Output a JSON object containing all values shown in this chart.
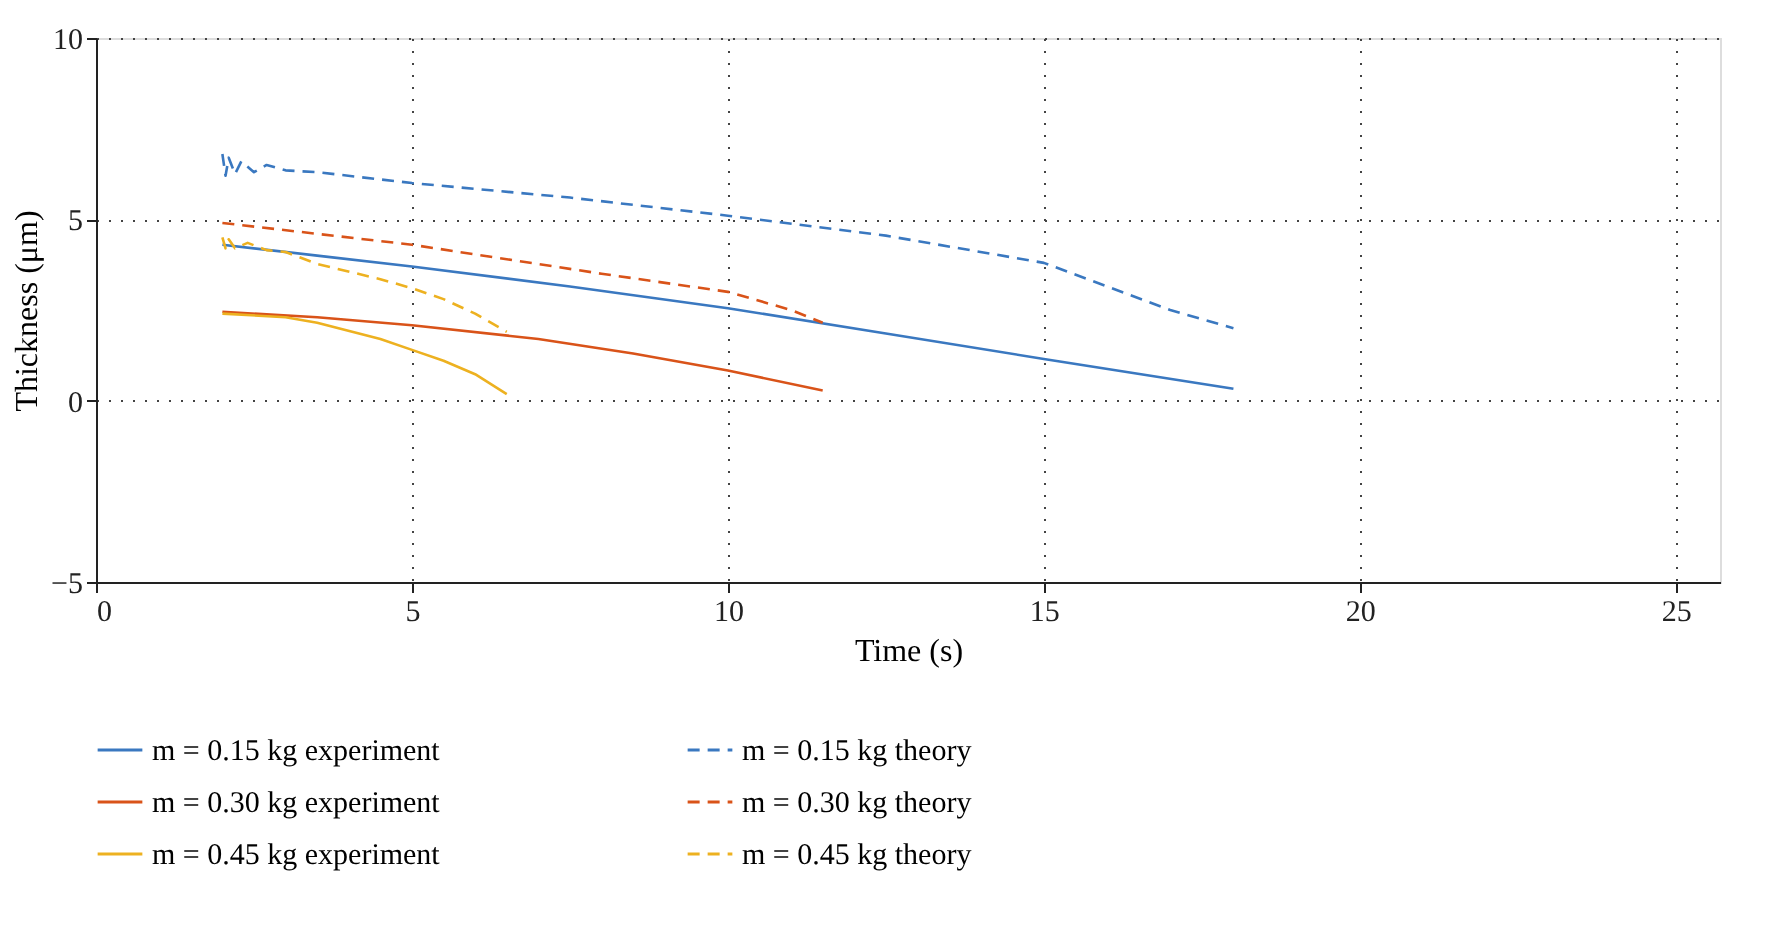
{
  "chart_data": {
    "type": "line",
    "xlabel": "Time (s)",
    "ylabel": "Thickness (μm)",
    "xlim": [
      0,
      25.7
    ],
    "ylim": [
      -5,
      10
    ],
    "xticks": [
      0,
      5,
      10,
      15,
      20,
      25
    ],
    "yticks": [
      -5,
      0,
      5,
      10
    ],
    "grid": true,
    "legend": "bottom",
    "series": [
      {
        "name": "m = 0.15 kg experiment",
        "color": "#3a78c0",
        "line_style": "solid",
        "x": [
          2,
          3.5,
          5,
          7.5,
          10,
          12.5,
          15,
          18
        ],
        "values": [
          4.3,
          4.0,
          3.7,
          3.15,
          2.55,
          1.85,
          1.15,
          0.33
        ]
      },
      {
        "name": "m = 0.30 kg experiment",
        "color": "#d95319",
        "line_style": "solid",
        "x": [
          2,
          3.5,
          5,
          7,
          8.5,
          10,
          11.5
        ],
        "values": [
          2.45,
          2.3,
          2.08,
          1.7,
          1.3,
          0.83,
          0.28
        ]
      },
      {
        "name": "m = 0.45 kg experiment",
        "color": "#edb120",
        "line_style": "solid",
        "x": [
          2,
          3,
          3.5,
          4.5,
          5,
          5.5,
          6,
          6.5
        ],
        "values": [
          2.4,
          2.3,
          2.15,
          1.7,
          1.4,
          1.1,
          0.73,
          0.18
        ]
      },
      {
        "name": "m = 0.15 kg theory",
        "color": "#3a78c0",
        "line_style": "dashed",
        "x": [
          2,
          2.05,
          2.1,
          2.2,
          2.3,
          2.5,
          2.7,
          3,
          3.5,
          5,
          7.5,
          10,
          12.5,
          15,
          17,
          18
        ],
        "values": [
          6.8,
          6.2,
          6.7,
          6.25,
          6.6,
          6.3,
          6.5,
          6.35,
          6.3,
          6.0,
          5.6,
          5.1,
          4.55,
          3.8,
          2.5,
          2.0
        ]
      },
      {
        "name": "m = 0.30 kg theory",
        "color": "#d95319",
        "line_style": "dashed",
        "x": [
          2,
          3.5,
          5,
          6.5,
          8,
          10,
          11,
          11.5
        ],
        "values": [
          4.9,
          4.6,
          4.3,
          3.9,
          3.5,
          3.0,
          2.5,
          2.15
        ]
      },
      {
        "name": "m = 0.45 kg theory",
        "color": "#edb120",
        "line_style": "dashed",
        "x": [
          2,
          2.05,
          2.1,
          2.2,
          2.4,
          2.7,
          3,
          3.5,
          4.5,
          5,
          5.5,
          6,
          6.5
        ],
        "values": [
          4.5,
          4.2,
          4.45,
          4.2,
          4.35,
          4.15,
          4.1,
          3.77,
          3.35,
          3.1,
          2.8,
          2.4,
          1.9
        ]
      }
    ]
  }
}
